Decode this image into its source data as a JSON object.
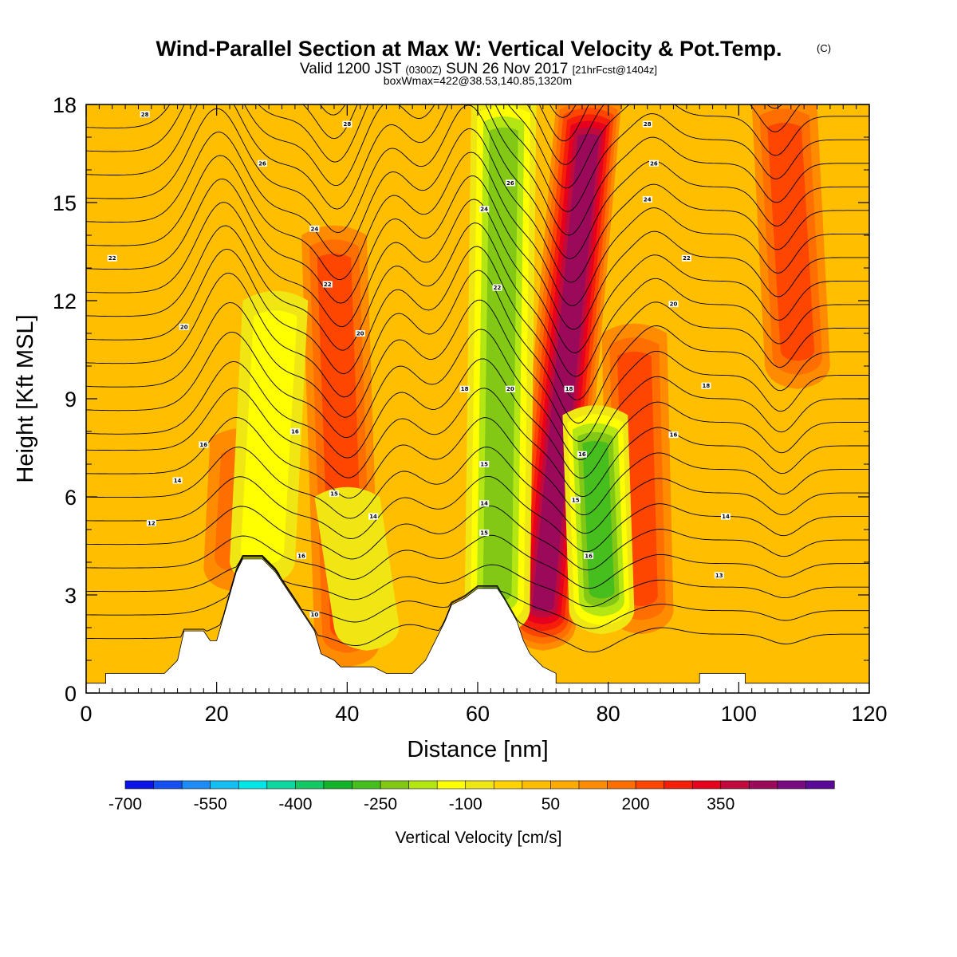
{
  "title": "Wind-Parallel Section at Max W: Vertical Velocity & Pot.Temp.",
  "copyright": "(C)",
  "subtitle": {
    "pre": "Valid 1200 JST",
    "utc": "(0300Z)",
    "mid": "SUN 26 Nov 2017",
    "fcst": "[21hrFcst@1404z]"
  },
  "subtitle2": "boxWmax=422@38.53,140.85,1320m",
  "colorbar": {
    "title": "Vertical Velocity [cm/s]",
    "labels": [
      "-700",
      "-550",
      "-400",
      "-250",
      "-100",
      "50",
      "200",
      "350"
    ],
    "colors": [
      "#0a14e6",
      "#1450f0",
      "#1e8cf5",
      "#14bef0",
      "#00e6e6",
      "#10d6a0",
      "#14c864",
      "#14b428",
      "#46be1e",
      "#82c814",
      "#b4e614",
      "#ffff00",
      "#f0e614",
      "#ffd200",
      "#ffbe00",
      "#ffaa00",
      "#ff8c00",
      "#ff6e00",
      "#ff4600",
      "#f51e0a",
      "#e6001e",
      "#be0a3c",
      "#9b0a5a",
      "#780a82",
      "#5a0a96"
    ]
  },
  "chart_data": {
    "type": "heatmap",
    "title": "Wind-Parallel Section at Max W: Vertical Velocity & Pot.Temp.",
    "xlabel": "Distance [nm]",
    "ylabel": "Height [Kft MSL]",
    "xlim": [
      0,
      120
    ],
    "ylim": [
      0,
      18
    ],
    "xticks": [
      0,
      20,
      40,
      60,
      80,
      100,
      120
    ],
    "yticks": [
      0,
      3,
      6,
      9,
      12,
      15,
      18
    ],
    "fill_variable": "Vertical Velocity [cm/s]",
    "contour_variable": "Potential Temperature",
    "terrain_profile": [
      [
        0,
        0.3
      ],
      [
        3,
        0.3
      ],
      [
        3,
        0.6
      ],
      [
        12,
        0.6
      ],
      [
        14,
        1.0
      ],
      [
        15,
        1.9
      ],
      [
        18,
        1.9
      ],
      [
        19,
        1.6
      ],
      [
        20,
        1.6
      ],
      [
        21,
        2.3
      ],
      [
        23,
        3.7
      ],
      [
        24,
        4.1
      ],
      [
        27,
        4.1
      ],
      [
        29,
        3.7
      ],
      [
        31,
        3.1
      ],
      [
        33,
        2.5
      ],
      [
        35,
        1.9
      ],
      [
        36,
        1.2
      ],
      [
        38,
        1.0
      ],
      [
        39,
        0.8
      ],
      [
        44,
        0.8
      ],
      [
        46,
        0.6
      ],
      [
        50,
        0.6
      ],
      [
        52,
        1.0
      ],
      [
        55,
        2.2
      ],
      [
        56,
        2.7
      ],
      [
        58,
        2.9
      ],
      [
        60,
        3.2
      ],
      [
        63,
        3.2
      ],
      [
        64,
        2.9
      ],
      [
        66,
        2.2
      ],
      [
        67,
        1.6
      ],
      [
        68,
        1.2
      ],
      [
        70,
        0.8
      ],
      [
        72,
        0.6
      ],
      [
        72,
        0.3
      ],
      [
        94,
        0.3
      ],
      [
        94,
        0.6
      ],
      [
        101,
        0.6
      ],
      [
        101,
        0.3
      ],
      [
        120,
        0.3
      ]
    ],
    "w_features": [
      {
        "x_base": 23,
        "x_top": 24,
        "z_bottom": 3.8,
        "z_top": 7.8,
        "w": 150
      },
      {
        "x_base": 40,
        "x_top": 38,
        "z_bottom": 1.5,
        "z_top": 14.0,
        "w": 220
      },
      {
        "x_base": 70,
        "x_top": 77,
        "z_bottom": 2.0,
        "z_top": 18.0,
        "w": 400
      },
      {
        "x_base": 85,
        "x_top": 84,
        "z_bottom": 2.5,
        "z_top": 11.0,
        "w": 200
      },
      {
        "x_base": 109,
        "x_top": 107,
        "z_bottom": 10.0,
        "z_top": 18.0,
        "w": 200
      },
      {
        "x_base": 27,
        "x_top": 29,
        "z_bottom": 4.0,
        "z_top": 12.0,
        "w": -170
      },
      {
        "x_base": 43,
        "x_top": 40,
        "z_bottom": 2.0,
        "z_top": 6.0,
        "w": -120
      },
      {
        "x_base": 63,
        "x_top": 64,
        "z_bottom": 2.5,
        "z_top": 18.0,
        "w": -280
      },
      {
        "x_base": 79,
        "x_top": 78,
        "z_bottom": 2.5,
        "z_top": 8.5,
        "w": -300
      }
    ],
    "theta_contour_labels": [
      {
        "x": 9,
        "z": 17.7,
        "text": "28"
      },
      {
        "x": 40,
        "z": 17.4,
        "text": "28"
      },
      {
        "x": 27,
        "z": 16.2,
        "text": "26"
      },
      {
        "x": 86,
        "z": 17.4,
        "text": "28"
      },
      {
        "x": 87,
        "z": 16.2,
        "text": "26"
      },
      {
        "x": 65,
        "z": 15.6,
        "text": "26"
      },
      {
        "x": 61,
        "z": 14.8,
        "text": "24"
      },
      {
        "x": 86,
        "z": 15.1,
        "text": "24"
      },
      {
        "x": 35,
        "z": 14.2,
        "text": "24"
      },
      {
        "x": 4,
        "z": 13.3,
        "text": "22"
      },
      {
        "x": 92,
        "z": 13.3,
        "text": "22"
      },
      {
        "x": 37,
        "z": 12.5,
        "text": "22"
      },
      {
        "x": 63,
        "z": 12.4,
        "text": "22"
      },
      {
        "x": 90,
        "z": 11.9,
        "text": "20"
      },
      {
        "x": 15,
        "z": 11.2,
        "text": "20"
      },
      {
        "x": 42,
        "z": 11.0,
        "text": "20"
      },
      {
        "x": 95,
        "z": 9.4,
        "text": "18"
      },
      {
        "x": 58,
        "z": 9.3,
        "text": "18"
      },
      {
        "x": 65,
        "z": 9.3,
        "text": "20"
      },
      {
        "x": 74,
        "z": 9.3,
        "text": "18"
      },
      {
        "x": 90,
        "z": 7.9,
        "text": "16"
      },
      {
        "x": 32,
        "z": 8.0,
        "text": "16"
      },
      {
        "x": 18,
        "z": 7.6,
        "text": "16"
      },
      {
        "x": 76,
        "z": 7.3,
        "text": "16"
      },
      {
        "x": 61,
        "z": 7.0,
        "text": "15"
      },
      {
        "x": 14,
        "z": 6.5,
        "text": "14"
      },
      {
        "x": 38,
        "z": 6.1,
        "text": "15"
      },
      {
        "x": 75,
        "z": 5.9,
        "text": "15"
      },
      {
        "x": 61,
        "z": 5.8,
        "text": "14"
      },
      {
        "x": 44,
        "z": 5.4,
        "text": "14"
      },
      {
        "x": 98,
        "z": 5.4,
        "text": "14"
      },
      {
        "x": 10,
        "z": 5.2,
        "text": "12"
      },
      {
        "x": 61,
        "z": 4.9,
        "text": "15"
      },
      {
        "x": 77,
        "z": 4.2,
        "text": "16"
      },
      {
        "x": 33,
        "z": 4.2,
        "text": "16"
      },
      {
        "x": 97,
        "z": 3.6,
        "text": "13"
      },
      {
        "x": 35,
        "z": 2.4,
        "text": "10"
      }
    ]
  }
}
